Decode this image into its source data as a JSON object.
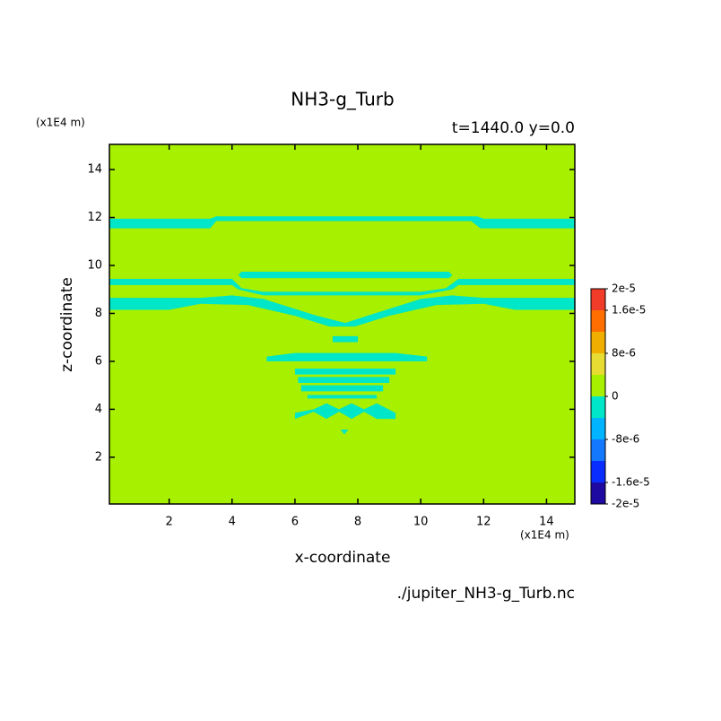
{
  "chart_data": {
    "type": "contour",
    "title": "NH3-g_Turb",
    "subtitle": "t=1440.0 y=0.0",
    "x_label": "x-coordinate",
    "y_label": "z-coordinate",
    "x_unit": "(x1E4 m)",
    "y_unit": "(x1E4 m)",
    "source": "./jupiter_NH3-g_Turb.nc",
    "xlim": [
      0.1,
      14.9
    ],
    "ylim": [
      0.05,
      15.05
    ],
    "xticks": [
      2,
      4,
      6,
      8,
      10,
      12,
      14
    ],
    "yticks": [
      2,
      4,
      6,
      8,
      10,
      12,
      14
    ],
    "background_color": "#a6f000",
    "regions": [
      {
        "color": "#00e6c8",
        "x": [
          0.1,
          3.3,
          3.5,
          11.6,
          11.9,
          14.9,
          14.9,
          12.0,
          11.8,
          3.5,
          3.3,
          0.1
        ],
        "y": [
          11.55,
          11.55,
          11.85,
          11.85,
          11.55,
          11.55,
          11.95,
          11.95,
          12.05,
          12.05,
          11.95,
          11.95
        ]
      },
      {
        "color": "#00e6c8",
        "x": [
          4.3,
          10.9,
          11.0,
          10.9,
          4.3,
          4.2
        ],
        "y": [
          9.47,
          9.47,
          9.6,
          9.74,
          9.74,
          9.6
        ]
      },
      {
        "color": "#00e6c8",
        "x": [
          0.1,
          4.0,
          4.2,
          5.0,
          10.0,
          11.0,
          11.2,
          14.9,
          14.9,
          11.2,
          10.8,
          10.0,
          5.0,
          4.3,
          4.0,
          0.1
        ],
        "y": [
          9.18,
          9.18,
          9.0,
          8.75,
          8.75,
          9.0,
          9.18,
          9.18,
          9.44,
          9.44,
          9.05,
          8.9,
          8.9,
          9.05,
          9.44,
          9.44
        ]
      },
      {
        "color": "#00e6c8",
        "x": [
          0.1,
          2,
          3,
          4.5,
          6,
          7.1,
          7.9,
          9,
          10.5,
          12,
          13,
          14.9,
          14.9,
          12,
          11,
          10,
          8.3,
          7.6,
          6.7,
          5,
          4,
          3,
          0.1
        ],
        "y": [
          8.15,
          8.15,
          8.4,
          8.35,
          7.9,
          7.45,
          7.45,
          7.9,
          8.35,
          8.4,
          8.15,
          8.15,
          8.65,
          8.65,
          8.75,
          8.6,
          7.9,
          7.6,
          7.9,
          8.6,
          8.75,
          8.65,
          8.65
        ]
      },
      {
        "color": "#00e6c8",
        "x": [
          7.2,
          8.0,
          8.0,
          7.2
        ],
        "y": [
          6.8,
          6.8,
          7.05,
          7.05
        ]
      },
      {
        "color": "#00e6c8",
        "x": [
          5.1,
          10.2,
          10.2,
          9.2,
          6.0,
          5.1
        ],
        "y": [
          6.0,
          6.0,
          6.2,
          6.35,
          6.35,
          6.2
        ]
      },
      {
        "color": "#00e6c8",
        "x": [
          6.0,
          9.2,
          9.2,
          6.0
        ],
        "y": [
          5.45,
          5.45,
          5.7,
          5.7
        ]
      },
      {
        "color": "#00e6c8",
        "x": [
          6.1,
          9.0,
          9.0,
          6.1
        ],
        "y": [
          5.1,
          5.1,
          5.35,
          5.35
        ]
      },
      {
        "color": "#00e6c8",
        "x": [
          6.2,
          8.8,
          8.8,
          6.2
        ],
        "y": [
          4.75,
          4.75,
          5.0,
          5.0
        ]
      },
      {
        "color": "#00e6c8",
        "x": [
          6.4,
          8.6,
          8.6,
          6.4
        ],
        "y": [
          4.45,
          4.45,
          4.6,
          4.6
        ]
      },
      {
        "color": "#00e6c8",
        "x": [
          6.0,
          6.6,
          7.0,
          7.4,
          7.8,
          8.2,
          8.6,
          9.2,
          9.2,
          8.6,
          8.2,
          7.8,
          7.4,
          7.0,
          6.6,
          6.0
        ],
        "y": [
          3.6,
          3.9,
          3.6,
          3.9,
          3.6,
          3.9,
          3.6,
          3.6,
          3.85,
          4.25,
          4.0,
          4.25,
          4.0,
          4.25,
          4.0,
          3.85
        ]
      },
      {
        "color": "#00e6c8",
        "x": [
          7.45,
          7.7,
          7.57
        ],
        "y": [
          3.15,
          3.15,
          2.95
        ]
      }
    ],
    "colorbar": {
      "bounds": [
        -2e-05,
        -1.6e-05,
        -1.2e-05,
        -8e-06,
        -4e-06,
        0,
        4e-06,
        8e-06,
        1.2e-05,
        1.6e-05,
        2e-05
      ],
      "colors": [
        "#1e0aa0",
        "#0a2dff",
        "#1478ff",
        "#00b4ff",
        "#00e6c8",
        "#a6f000",
        "#e6dc32",
        "#f0af00",
        "#ff6e00",
        "#f03c28"
      ],
      "ticks": [
        {
          "value": -2e-05,
          "label": "-2e-5"
        },
        {
          "value": -1.6e-05,
          "label": "-1.6e-5"
        },
        {
          "value": -8e-06,
          "label": "-8e-6"
        },
        0,
        {
          "value": 8e-06,
          "label": "8e-6"
        },
        {
          "value": 1.6e-05,
          "label": "1.6e-5"
        },
        {
          "value": 2e-05,
          "label": "2e-5"
        }
      ]
    }
  }
}
